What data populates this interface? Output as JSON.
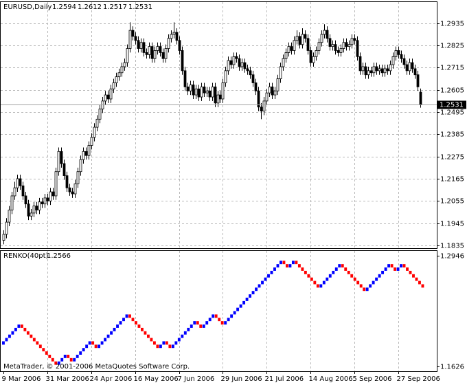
{
  "chart_data": [
    {
      "type": "candlestick",
      "title": "EURUSD,Daily",
      "color": "#000000",
      "up_fill": "#ffffff",
      "down_fill": "#000000",
      "grid": true,
      "ylim": [
        1.1821,
        1.304
      ],
      "yticks": [
        1.2935,
        1.2825,
        1.2715,
        1.2605,
        1.2495,
        1.2385,
        1.2275,
        1.2165,
        1.2055,
        1.1945,
        1.1835
      ],
      "xlim": [
        -1.25,
        157.75
      ],
      "xticks": [
        {
          "value": 0,
          "label": "9 Mar 2006"
        },
        {
          "value": 16,
          "label": "31 Mar 2006"
        },
        {
          "value": 32,
          "label": "24 Apr 2006"
        },
        {
          "value": 48,
          "label": "16 May 2006"
        },
        {
          "value": 64,
          "label": "7 Jun 2006"
        },
        {
          "value": 80,
          "label": "29 Jun 2006"
        },
        {
          "value": 96,
          "label": "21 Jul 2006"
        },
        {
          "value": 112,
          "label": "14 Aug 2006"
        },
        {
          "value": 128,
          "label": "5 Sep 2006"
        },
        {
          "value": 144,
          "label": "27 Sep 2006"
        }
      ],
      "ohlc": [
        [
          1.186,
          1.191,
          1.184,
          1.189
        ],
        [
          1.189,
          1.197,
          1.187,
          1.195
        ],
        [
          1.195,
          1.203,
          1.193,
          1.201
        ],
        [
          1.201,
          1.21,
          1.199,
          1.208
        ],
        [
          1.208,
          1.215,
          1.206,
          1.212
        ],
        [
          1.212,
          1.2185,
          1.21,
          1.2165
        ],
        [
          1.2165,
          1.2185,
          1.211,
          1.213
        ],
        [
          1.213,
          1.215,
          1.206,
          1.208
        ],
        [
          1.208,
          1.21,
          1.202,
          1.204
        ],
        [
          1.204,
          1.206,
          1.196,
          1.198
        ],
        [
          1.198,
          1.2015,
          1.196,
          1.1995
        ],
        [
          1.1995,
          1.205,
          1.1975,
          1.203
        ],
        [
          1.203,
          1.205,
          1.199,
          1.201
        ],
        [
          1.201,
          1.207,
          1.199,
          1.205
        ],
        [
          1.205,
          1.207,
          1.202,
          1.204
        ],
        [
          1.204,
          1.209,
          1.202,
          1.207
        ],
        [
          1.207,
          1.209,
          1.2035,
          1.2055
        ],
        [
          1.2055,
          1.212,
          1.2035,
          1.21
        ],
        [
          1.21,
          1.212,
          1.206,
          1.208
        ],
        [
          1.208,
          1.222,
          1.206,
          1.22
        ],
        [
          1.22,
          1.232,
          1.218,
          1.23
        ],
        [
          1.23,
          1.232,
          1.222,
          1.224
        ],
        [
          1.224,
          1.226,
          1.216,
          1.218
        ],
        [
          1.218,
          1.22,
          1.21,
          1.212
        ],
        [
          1.212,
          1.214,
          1.208,
          1.21
        ],
        [
          1.21,
          1.212,
          1.207,
          1.209
        ],
        [
          1.209,
          1.216,
          1.207,
          1.214
        ],
        [
          1.214,
          1.222,
          1.212,
          1.22
        ],
        [
          1.22,
          1.228,
          1.218,
          1.226
        ],
        [
          1.226,
          1.232,
          1.224,
          1.23
        ],
        [
          1.23,
          1.232,
          1.226,
          1.228
        ],
        [
          1.228,
          1.235,
          1.226,
          1.233
        ],
        [
          1.233,
          1.239,
          1.231,
          1.237
        ],
        [
          1.237,
          1.244,
          1.235,
          1.242
        ],
        [
          1.242,
          1.248,
          1.24,
          1.246
        ],
        [
          1.246,
          1.253,
          1.244,
          1.251
        ],
        [
          1.251,
          1.257,
          1.249,
          1.255
        ],
        [
          1.255,
          1.26,
          1.253,
          1.258
        ],
        [
          1.258,
          1.26,
          1.254,
          1.256
        ],
        [
          1.256,
          1.263,
          1.254,
          1.261
        ],
        [
          1.261,
          1.266,
          1.259,
          1.264
        ],
        [
          1.264,
          1.269,
          1.262,
          1.267
        ],
        [
          1.267,
          1.271,
          1.265,
          1.269
        ],
        [
          1.269,
          1.274,
          1.267,
          1.272
        ],
        [
          1.272,
          1.276,
          1.27,
          1.274
        ],
        [
          1.274,
          1.283,
          1.272,
          1.281
        ],
        [
          1.281,
          1.294,
          1.279,
          1.29
        ],
        [
          1.29,
          1.292,
          1.285,
          1.287
        ],
        [
          1.287,
          1.289,
          1.283,
          1.285
        ],
        [
          1.285,
          1.287,
          1.279,
          1.281
        ],
        [
          1.281,
          1.286,
          1.279,
          1.284
        ],
        [
          1.284,
          1.286,
          1.277,
          1.279
        ],
        [
          1.279,
          1.281,
          1.276,
          1.278
        ],
        [
          1.278,
          1.284,
          1.276,
          1.282
        ],
        [
          1.282,
          1.284,
          1.274,
          1.276
        ],
        [
          1.276,
          1.282,
          1.274,
          1.28
        ],
        [
          1.28,
          1.284,
          1.278,
          1.282
        ],
        [
          1.282,
          1.284,
          1.277,
          1.279
        ],
        [
          1.279,
          1.281,
          1.274,
          1.276
        ],
        [
          1.276,
          1.283,
          1.274,
          1.281
        ],
        [
          1.281,
          1.288,
          1.279,
          1.286
        ],
        [
          1.286,
          1.29,
          1.284,
          1.288
        ],
        [
          1.288,
          1.294,
          1.286,
          1.289
        ],
        [
          1.289,
          1.291,
          1.283,
          1.285
        ],
        [
          1.285,
          1.287,
          1.278,
          1.28
        ],
        [
          1.28,
          1.282,
          1.268,
          1.27
        ],
        [
          1.27,
          1.272,
          1.26,
          1.262
        ],
        [
          1.262,
          1.264,
          1.258,
          1.26
        ],
        [
          1.26,
          1.265,
          1.258,
          1.263
        ],
        [
          1.263,
          1.265,
          1.256,
          1.258
        ],
        [
          1.258,
          1.263,
          1.256,
          1.261
        ],
        [
          1.261,
          1.263,
          1.255,
          1.257
        ],
        [
          1.257,
          1.264,
          1.255,
          1.262
        ],
        [
          1.262,
          1.264,
          1.257,
          1.259
        ],
        [
          1.259,
          1.262,
          1.257,
          1.26
        ],
        [
          1.26,
          1.262,
          1.255,
          1.257
        ],
        [
          1.257,
          1.264,
          1.255,
          1.262
        ],
        [
          1.262,
          1.264,
          1.252,
          1.254
        ],
        [
          1.254,
          1.26,
          1.252,
          1.258
        ],
        [
          1.258,
          1.26,
          1.254,
          1.256
        ],
        [
          1.256,
          1.266,
          1.254,
          1.264
        ],
        [
          1.264,
          1.272,
          1.262,
          1.27
        ],
        [
          1.27,
          1.277,
          1.268,
          1.275
        ],
        [
          1.275,
          1.277,
          1.271,
          1.273
        ],
        [
          1.273,
          1.279,
          1.271,
          1.277
        ],
        [
          1.277,
          1.279,
          1.274,
          1.276
        ],
        [
          1.276,
          1.278,
          1.27,
          1.272
        ],
        [
          1.272,
          1.276,
          1.27,
          1.274
        ],
        [
          1.274,
          1.276,
          1.269,
          1.271
        ],
        [
          1.271,
          1.273,
          1.268,
          1.27
        ],
        [
          1.27,
          1.272,
          1.266,
          1.268
        ],
        [
          1.268,
          1.27,
          1.262,
          1.264
        ],
        [
          1.264,
          1.266,
          1.258,
          1.26
        ],
        [
          1.26,
          1.262,
          1.25,
          1.252
        ],
        [
          1.252,
          1.254,
          1.246,
          1.25
        ],
        [
          1.25,
          1.257,
          1.248,
          1.255
        ],
        [
          1.255,
          1.261,
          1.253,
          1.259
        ],
        [
          1.259,
          1.264,
          1.257,
          1.262
        ],
        [
          1.262,
          1.264,
          1.256,
          1.258
        ],
        [
          1.258,
          1.262,
          1.256,
          1.26
        ],
        [
          1.26,
          1.268,
          1.258,
          1.266
        ],
        [
          1.266,
          1.274,
          1.264,
          1.272
        ],
        [
          1.272,
          1.278,
          1.27,
          1.276
        ],
        [
          1.276,
          1.281,
          1.274,
          1.279
        ],
        [
          1.279,
          1.284,
          1.277,
          1.282
        ],
        [
          1.282,
          1.284,
          1.278,
          1.28
        ],
        [
          1.28,
          1.287,
          1.278,
          1.285
        ],
        [
          1.285,
          1.29,
          1.283,
          1.287
        ],
        [
          1.287,
          1.289,
          1.281,
          1.283
        ],
        [
          1.283,
          1.291,
          1.281,
          1.288
        ],
        [
          1.288,
          1.29,
          1.284,
          1.286
        ],
        [
          1.286,
          1.288,
          1.278,
          1.28
        ],
        [
          1.28,
          1.282,
          1.272,
          1.274
        ],
        [
          1.274,
          1.279,
          1.272,
          1.277
        ],
        [
          1.277,
          1.282,
          1.275,
          1.28
        ],
        [
          1.28,
          1.286,
          1.278,
          1.284
        ],
        [
          1.284,
          1.29,
          1.282,
          1.288
        ],
        [
          1.288,
          1.293,
          1.286,
          1.29
        ],
        [
          1.29,
          1.292,
          1.284,
          1.286
        ],
        [
          1.286,
          1.288,
          1.28,
          1.282
        ],
        [
          1.282,
          1.285,
          1.28,
          1.283
        ],
        [
          1.283,
          1.285,
          1.278,
          1.28
        ],
        [
          1.28,
          1.282,
          1.277,
          1.279
        ],
        [
          1.279,
          1.283,
          1.277,
          1.281
        ],
        [
          1.281,
          1.286,
          1.279,
          1.284
        ],
        [
          1.284,
          1.286,
          1.28,
          1.282
        ],
        [
          1.282,
          1.285,
          1.28,
          1.283
        ],
        [
          1.283,
          1.288,
          1.281,
          1.286
        ],
        [
          1.286,
          1.288,
          1.283,
          1.285
        ],
        [
          1.285,
          1.287,
          1.275,
          1.277
        ],
        [
          1.277,
          1.279,
          1.268,
          1.27
        ],
        [
          1.27,
          1.274,
          1.268,
          1.272
        ],
        [
          1.272,
          1.274,
          1.266,
          1.268
        ],
        [
          1.268,
          1.272,
          1.266,
          1.27
        ],
        [
          1.27,
          1.272,
          1.267,
          1.269
        ],
        [
          1.269,
          1.274,
          1.267,
          1.272
        ],
        [
          1.272,
          1.274,
          1.268,
          1.27
        ],
        [
          1.27,
          1.273,
          1.268,
          1.271
        ],
        [
          1.271,
          1.273,
          1.267,
          1.269
        ],
        [
          1.269,
          1.273,
          1.267,
          1.271
        ],
        [
          1.271,
          1.273,
          1.268,
          1.27
        ],
        [
          1.27,
          1.275,
          1.268,
          1.273
        ],
        [
          1.273,
          1.279,
          1.271,
          1.277
        ],
        [
          1.277,
          1.282,
          1.275,
          1.28
        ],
        [
          1.28,
          1.282,
          1.276,
          1.278
        ],
        [
          1.278,
          1.28,
          1.274,
          1.276
        ],
        [
          1.276,
          1.278,
          1.271,
          1.273
        ],
        [
          1.273,
          1.275,
          1.268,
          1.27
        ],
        [
          1.27,
          1.276,
          1.268,
          1.274
        ],
        [
          1.274,
          1.276,
          1.269,
          1.271
        ],
        [
          1.271,
          1.273,
          1.266,
          1.268
        ],
        [
          1.268,
          1.27,
          1.26,
          1.262
        ],
        [
          1.2594,
          1.2612,
          1.2517,
          1.2531
        ]
      ]
    },
    {
      "type": "renko",
      "title": "RENKO(40pt)",
      "annotation": "MetaTrader, © 2001-2006 MetaQuotes Software Corp.",
      "up_color": "#0000ff",
      "down_color": "#ff0000",
      "ylim": [
        1.1569,
        1.3003
      ],
      "yticks": [
        1.2946,
        1.1626
      ],
      "values": [
        1.1926,
        1.1966,
        1.2006,
        1.2046,
        1.2086,
        1.2126,
        1.2086,
        1.2046,
        1.2006,
        1.1966,
        1.1926,
        1.1886,
        1.1846,
        1.1806,
        1.1766,
        1.1726,
        1.1686,
        1.1646,
        1.1686,
        1.1726,
        1.1766,
        1.1726,
        1.1686,
        1.1726,
        1.1766,
        1.1806,
        1.1846,
        1.1886,
        1.1926,
        1.1886,
        1.1846,
        1.1886,
        1.1926,
        1.1966,
        1.2006,
        1.2046,
        1.2086,
        1.2126,
        1.2166,
        1.2206,
        1.2246,
        1.2206,
        1.2166,
        1.2126,
        1.2086,
        1.2046,
        1.2006,
        1.1966,
        1.1926,
        1.1886,
        1.1846,
        1.1886,
        1.1926,
        1.1886,
        1.1846,
        1.1886,
        1.1926,
        1.1966,
        1.2006,
        1.2046,
        1.2086,
        1.2126,
        1.2166,
        1.2126,
        1.2086,
        1.2126,
        1.2166,
        1.2206,
        1.2246,
        1.2206,
        1.2166,
        1.2126,
        1.2166,
        1.2206,
        1.2246,
        1.2286,
        1.2326,
        1.2366,
        1.2406,
        1.2446,
        1.2486,
        1.2526,
        1.2566,
        1.2606,
        1.2646,
        1.2686,
        1.2726,
        1.2766,
        1.2806,
        1.2846,
        1.2886,
        1.2846,
        1.2806,
        1.2846,
        1.2886,
        1.2846,
        1.2806,
        1.2766,
        1.2726,
        1.2686,
        1.2646,
        1.2606,
        1.2566,
        1.2606,
        1.2646,
        1.2686,
        1.2726,
        1.2766,
        1.2806,
        1.2846,
        1.2806,
        1.2766,
        1.2726,
        1.2686,
        1.2646,
        1.2606,
        1.2566,
        1.2526,
        1.2566,
        1.2606,
        1.2646,
        1.2686,
        1.2726,
        1.2766,
        1.2806,
        1.2846,
        1.2806,
        1.2766,
        1.2806,
        1.2846,
        1.2806,
        1.2766,
        1.2726,
        1.2686,
        1.2646,
        1.2606,
        1.2566
      ]
    }
  ]
}
